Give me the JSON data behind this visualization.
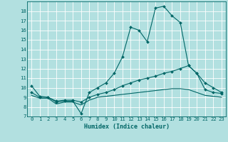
{
  "xlabel": "Humidex (Indice chaleur)",
  "background_color": "#b2e0e0",
  "grid_color": "#ffffff",
  "line_color": "#006666",
  "xlim": [
    -0.5,
    23.5
  ],
  "ylim": [
    7.0,
    19.0
  ],
  "yticks": [
    7,
    8,
    9,
    10,
    11,
    12,
    13,
    14,
    15,
    16,
    17,
    18
  ],
  "xticks": [
    0,
    1,
    2,
    3,
    4,
    5,
    6,
    7,
    8,
    9,
    10,
    11,
    12,
    13,
    14,
    15,
    16,
    17,
    18,
    19,
    20,
    21,
    22,
    23
  ],
  "line1_x": [
    0,
    1,
    2,
    3,
    4,
    5,
    6,
    7,
    8,
    9,
    10,
    11,
    12,
    13,
    14,
    15,
    16,
    17,
    18,
    19,
    20,
    21,
    22,
    23
  ],
  "line1_y": [
    10.2,
    9.1,
    9.0,
    8.5,
    8.6,
    8.6,
    7.3,
    9.5,
    10.0,
    10.5,
    11.5,
    13.2,
    16.3,
    16.0,
    14.8,
    18.3,
    18.5,
    17.5,
    16.8,
    12.3,
    11.5,
    10.5,
    10.0,
    9.5
  ],
  "line2_x": [
    0,
    1,
    2,
    3,
    4,
    5,
    6,
    7,
    8,
    9,
    10,
    11,
    12,
    13,
    14,
    15,
    16,
    17,
    18,
    19,
    20,
    21,
    22,
    23
  ],
  "line2_y": [
    9.5,
    9.0,
    9.0,
    8.6,
    8.7,
    8.7,
    8.5,
    9.0,
    9.3,
    9.5,
    9.8,
    10.2,
    10.5,
    10.8,
    11.0,
    11.2,
    11.5,
    11.7,
    12.0,
    12.3,
    11.5,
    9.8,
    9.5,
    9.4
  ],
  "line3_x": [
    0,
    1,
    2,
    3,
    4,
    5,
    6,
    7,
    8,
    9,
    10,
    11,
    12,
    13,
    14,
    15,
    16,
    17,
    18,
    19,
    20,
    21,
    22,
    23
  ],
  "line3_y": [
    9.2,
    8.9,
    8.9,
    8.3,
    8.5,
    8.5,
    8.2,
    8.7,
    9.0,
    9.1,
    9.2,
    9.3,
    9.4,
    9.5,
    9.6,
    9.7,
    9.8,
    9.9,
    9.9,
    9.8,
    9.5,
    9.2,
    9.1,
    9.0
  ],
  "xlabel_fontsize": 6.0,
  "tick_fontsize": 5.2
}
